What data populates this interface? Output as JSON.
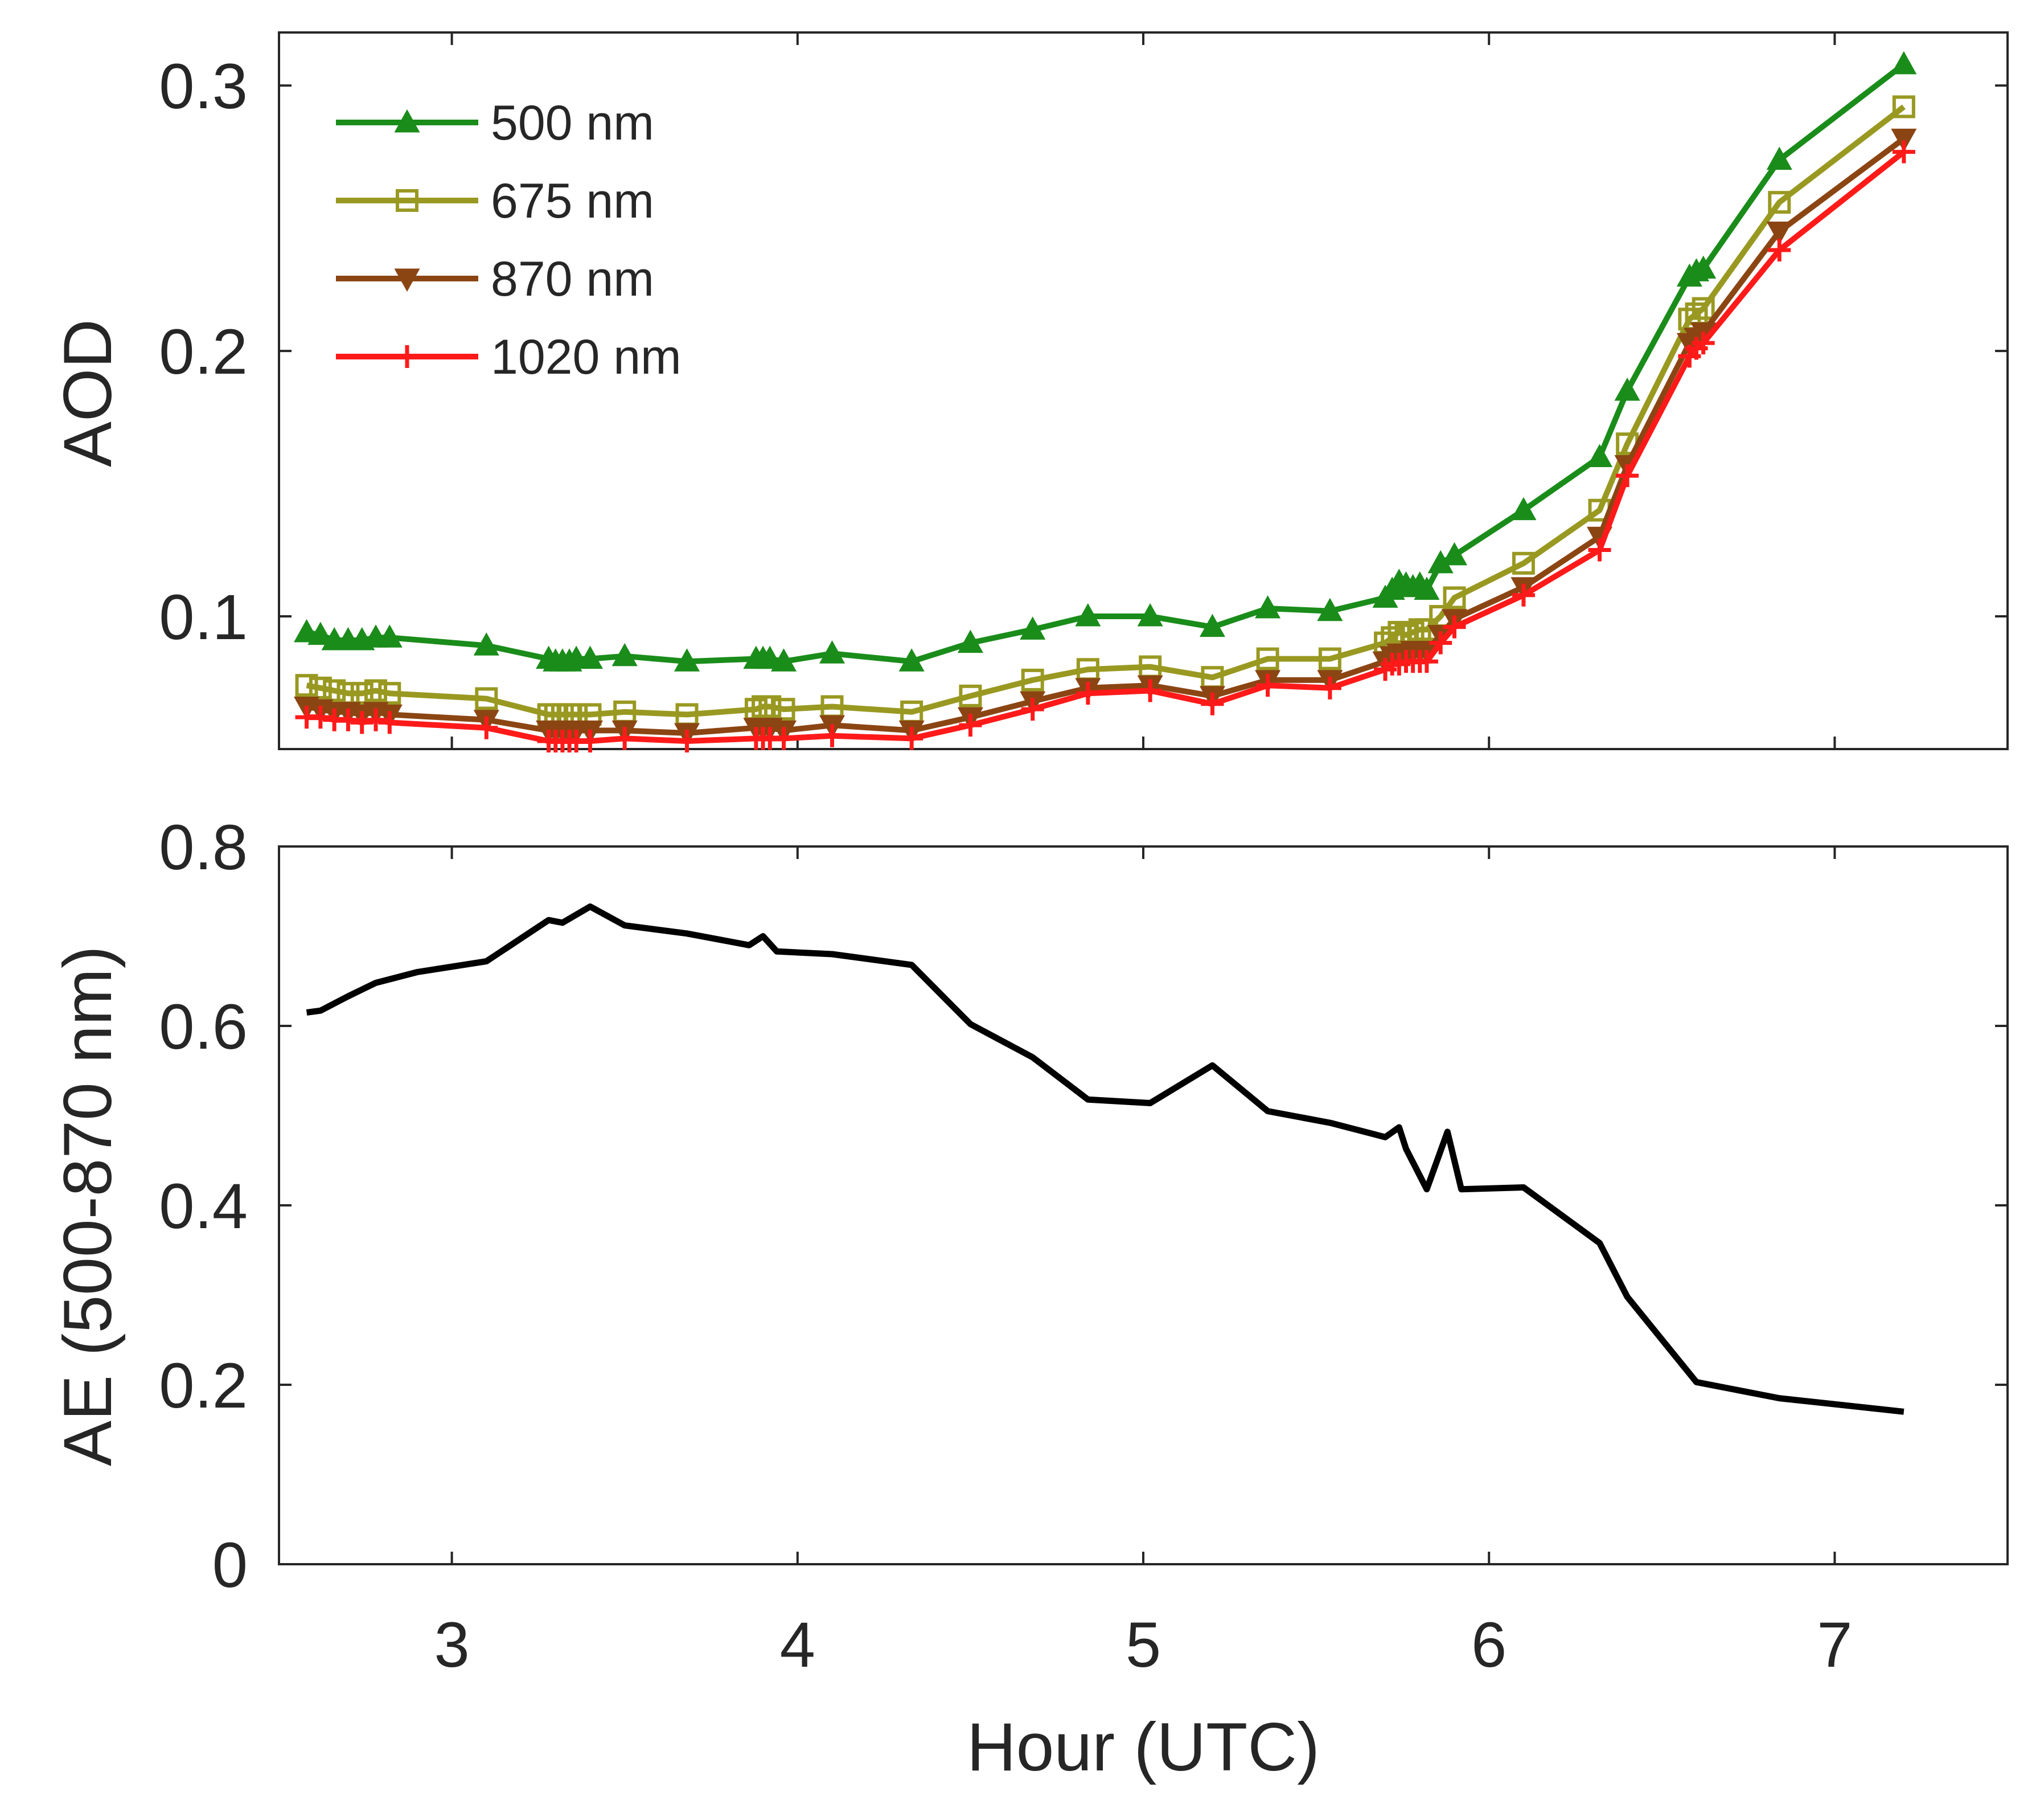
{
  "chart_data": [
    {
      "type": "line",
      "panel": "top",
      "title": "",
      "xlabel": "",
      "ylabel": "AOD",
      "xlim": [
        2.5,
        7.5
      ],
      "ylim": [
        0.05,
        0.32
      ],
      "xticks": [
        3,
        4,
        5,
        6,
        7
      ],
      "yticks": [
        0.1,
        0.2,
        0.3
      ],
      "ytick_labels": [
        "0.1",
        "0.2",
        "0.3"
      ],
      "legend_position": "top-left",
      "x": [
        2.58,
        2.62,
        2.66,
        2.7,
        2.74,
        2.78,
        2.82,
        3.1,
        3.28,
        3.3,
        3.32,
        3.34,
        3.36,
        3.4,
        3.5,
        3.68,
        3.88,
        3.9,
        3.92,
        3.96,
        4.1,
        4.33,
        4.5,
        4.68,
        4.84,
        5.02,
        5.2,
        5.36,
        5.54,
        5.7,
        5.72,
        5.74,
        5.76,
        5.78,
        5.8,
        5.82,
        5.86,
        5.9,
        6.1,
        6.32,
        6.4,
        6.58,
        6.6,
        6.62,
        6.84,
        7.2
      ],
      "series": [
        {
          "name": "500 nm",
          "color": "#1a8c1a",
          "marker": "triangle-up",
          "values": [
            0.094,
            0.093,
            0.091,
            0.091,
            0.091,
            0.092,
            0.092,
            0.089,
            0.084,
            0.083,
            0.083,
            0.083,
            0.084,
            0.084,
            0.085,
            0.083,
            0.084,
            0.084,
            0.084,
            0.083,
            0.086,
            0.083,
            0.09,
            0.095,
            0.1,
            0.1,
            0.096,
            0.103,
            0.102,
            0.107,
            0.11,
            0.113,
            0.112,
            0.111,
            0.112,
            0.11,
            0.12,
            0.123,
            0.14,
            0.16,
            0.185,
            0.228,
            0.23,
            0.231,
            0.272,
            0.308
          ]
        },
        {
          "name": "675 nm",
          "color": "#999922",
          "marker": "square",
          "values": [
            0.074,
            0.073,
            0.072,
            0.071,
            0.071,
            0.072,
            0.071,
            0.069,
            0.063,
            0.063,
            0.063,
            0.063,
            0.063,
            0.063,
            0.064,
            0.063,
            0.065,
            0.066,
            0.066,
            0.065,
            0.066,
            0.064,
            0.07,
            0.076,
            0.08,
            0.081,
            0.077,
            0.084,
            0.084,
            0.09,
            0.092,
            0.094,
            0.093,
            0.094,
            0.095,
            0.095,
            0.1,
            0.107,
            0.12,
            0.14,
            0.165,
            0.212,
            0.214,
            0.216,
            0.256,
            0.292
          ]
        },
        {
          "name": "870 nm",
          "color": "#8b4513",
          "marker": "triangle-down",
          "values": [
            0.066,
            0.065,
            0.064,
            0.064,
            0.063,
            0.064,
            0.063,
            0.061,
            0.057,
            0.057,
            0.057,
            0.056,
            0.057,
            0.057,
            0.057,
            0.056,
            0.058,
            0.058,
            0.058,
            0.057,
            0.059,
            0.057,
            0.062,
            0.068,
            0.073,
            0.074,
            0.07,
            0.076,
            0.076,
            0.083,
            0.085,
            0.086,
            0.086,
            0.087,
            0.087,
            0.087,
            0.093,
            0.099,
            0.111,
            0.13,
            0.157,
            0.203,
            0.205,
            0.207,
            0.245,
            0.28
          ]
        },
        {
          "name": "1020 nm",
          "color": "#ff1a1a",
          "marker": "plus",
          "values": [
            0.062,
            0.062,
            0.061,
            0.061,
            0.06,
            0.061,
            0.06,
            0.058,
            0.053,
            0.053,
            0.053,
            0.053,
            0.053,
            0.053,
            0.054,
            0.053,
            0.054,
            0.054,
            0.054,
            0.054,
            0.055,
            0.054,
            0.059,
            0.065,
            0.071,
            0.072,
            0.067,
            0.074,
            0.073,
            0.08,
            0.082,
            0.082,
            0.083,
            0.083,
            0.083,
            0.083,
            0.09,
            0.096,
            0.108,
            0.125,
            0.153,
            0.198,
            0.201,
            0.203,
            0.238,
            0.275
          ]
        }
      ]
    },
    {
      "type": "line",
      "panel": "bottom",
      "title": "",
      "xlabel": "Hour (UTC)",
      "ylabel": "AE (500-870 nm)",
      "xlim": [
        2.5,
        7.5
      ],
      "ylim": [
        0,
        0.8
      ],
      "xticks": [
        3,
        4,
        5,
        6,
        7
      ],
      "xtick_labels": [
        "3",
        "4",
        "5",
        "6",
        "7"
      ],
      "yticks": [
        0,
        0.2,
        0.4,
        0.6,
        0.8
      ],
      "ytick_labels": [
        "0",
        "0.2",
        "0.4",
        "0.6",
        "0.8"
      ],
      "series": [
        {
          "name": "AE",
          "color": "#000000",
          "x": [
            2.58,
            2.62,
            2.7,
            2.78,
            2.9,
            3.1,
            3.28,
            3.32,
            3.4,
            3.5,
            3.68,
            3.86,
            3.9,
            3.94,
            4.1,
            4.33,
            4.5,
            4.68,
            4.84,
            5.02,
            5.2,
            5.36,
            5.54,
            5.7,
            5.74,
            5.76,
            5.82,
            5.88,
            5.92,
            6.1,
            6.32,
            6.4,
            6.6,
            6.84,
            7.2
          ],
          "values": [
            0.615,
            0.617,
            0.633,
            0.648,
            0.66,
            0.672,
            0.718,
            0.715,
            0.733,
            0.712,
            0.703,
            0.69,
            0.7,
            0.683,
            0.68,
            0.668,
            0.602,
            0.565,
            0.518,
            0.514,
            0.556,
            0.505,
            0.492,
            0.476,
            0.487,
            0.463,
            0.418,
            0.482,
            0.418,
            0.42,
            0.358,
            0.298,
            0.203,
            0.185,
            0.17
          ]
        }
      ]
    }
  ]
}
